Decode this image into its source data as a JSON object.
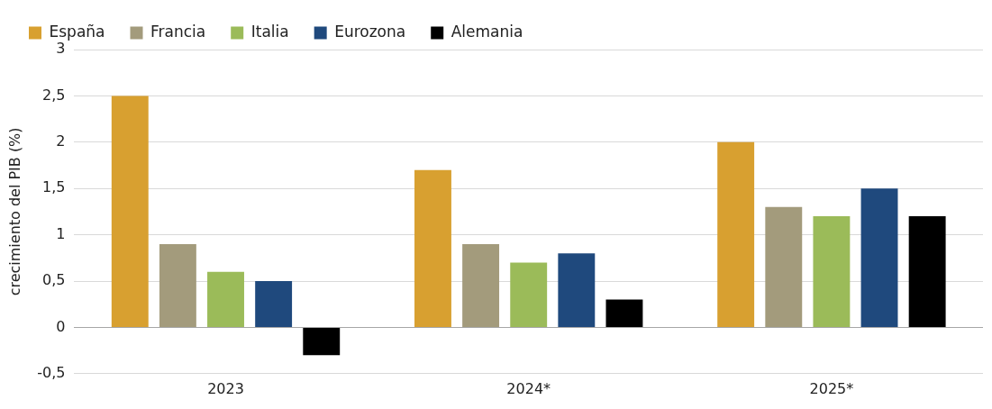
{
  "chart_data": {
    "type": "bar",
    "ylabel": "crecimiento del PIB (%)",
    "categories": [
      "2023",
      "2024*",
      "2025*"
    ],
    "series": [
      {
        "name": "España",
        "color": "#d8a030",
        "values": [
          2.5,
          1.7,
          2.0
        ]
      },
      {
        "name": "Francia",
        "color": "#a39b7c",
        "values": [
          0.9,
          0.9,
          1.3
        ]
      },
      {
        "name": "Italia",
        "color": "#9bbb59",
        "values": [
          0.6,
          0.7,
          1.2
        ]
      },
      {
        "name": "Eurozona",
        "color": "#1f497d",
        "values": [
          0.5,
          0.8,
          1.5
        ]
      },
      {
        "name": "Alemania",
        "color": "#000000",
        "values": [
          -0.3,
          0.3,
          1.2
        ]
      }
    ],
    "ylim": [
      -0.5,
      3
    ],
    "yticks": [
      {
        "value": -0.5,
        "label": "-0,5"
      },
      0,
      {
        "value": 0.5,
        "label": "0,5"
      },
      1,
      {
        "value": 1.5,
        "label": "1,5"
      },
      2,
      {
        "value": 2.5,
        "label": "2,5"
      },
      3
    ],
    "grid": "y",
    "legend": "top left"
  }
}
